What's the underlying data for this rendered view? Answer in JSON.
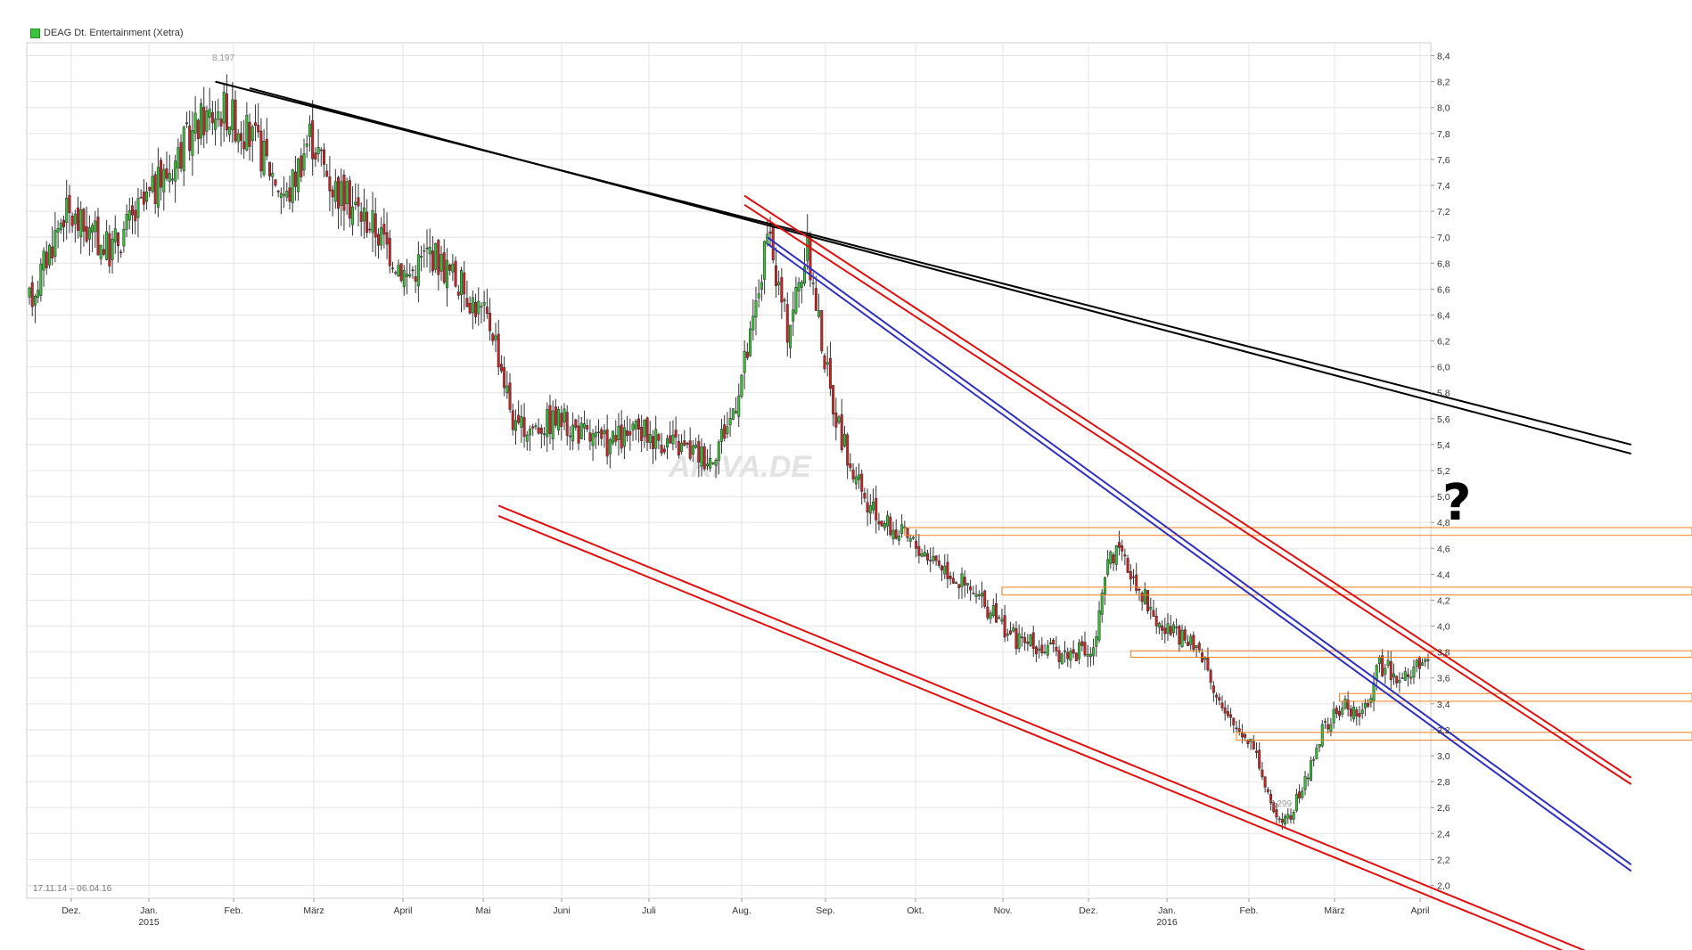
{
  "chart_data": {
    "type": "candlestick",
    "title": "DEAG Dt. Entertainment (Xetra)",
    "date_range": "17.11.14 – 06.04.16",
    "ylim": [
      1.9,
      8.5
    ],
    "y_ticks": [
      2.0,
      2.2,
      2.4,
      2.6,
      2.8,
      3.0,
      3.2,
      3.4,
      3.6,
      3.8,
      4.0,
      4.2,
      4.4,
      4.6,
      4.8,
      5.0,
      5.2,
      5.4,
      5.6,
      5.8,
      6.0,
      6.2,
      6.4,
      6.6,
      6.8,
      7.0,
      7.2,
      7.4,
      7.6,
      7.8,
      8.0,
      8.2,
      8.4
    ],
    "y_tick_labels": [
      "2,0",
      "2,2",
      "2,4",
      "2,6",
      "2,8",
      "3,0",
      "3,2",
      "3,4",
      "3,6",
      "3,8",
      "4,0",
      "4,2",
      "4,4",
      "4,6",
      "4,8",
      "5,0",
      "5,2",
      "5,4",
      "5,6",
      "5,8",
      "6,0",
      "6,2",
      "6,4",
      "6,6",
      "6,8",
      "7,0",
      "7,2",
      "7,4",
      "7,6",
      "7,8",
      "8,0",
      "8,2",
      "8,4"
    ],
    "x_months": [
      {
        "label": "Dez.",
        "sub": ""
      },
      {
        "label": "Jan.",
        "sub": "2015"
      },
      {
        "label": "Feb.",
        "sub": ""
      },
      {
        "label": "März",
        "sub": ""
      },
      {
        "label": "April",
        "sub": ""
      },
      {
        "label": "Mai",
        "sub": ""
      },
      {
        "label": "Juni",
        "sub": ""
      },
      {
        "label": "Juli",
        "sub": ""
      },
      {
        "label": "Aug.",
        "sub": ""
      },
      {
        "label": "Sep.",
        "sub": ""
      },
      {
        "label": "Okt.",
        "sub": ""
      },
      {
        "label": "Nov.",
        "sub": ""
      },
      {
        "label": "Dez.",
        "sub": ""
      },
      {
        "label": "Jan.",
        "sub": "2016"
      },
      {
        "label": "Feb.",
        "sub": ""
      },
      {
        "label": "März",
        "sub": ""
      },
      {
        "label": "April",
        "sub": ""
      }
    ],
    "anchors": [
      {
        "x": 0,
        "y": 6.5
      },
      {
        "x": 12,
        "y": 7.2
      },
      {
        "x": 28,
        "y": 6.9
      },
      {
        "x": 45,
        "y": 7.4
      },
      {
        "x": 60,
        "y": 7.9
      },
      {
        "x": 68,
        "y": 8.0
      },
      {
        "x": 80,
        "y": 7.7
      },
      {
        "x": 90,
        "y": 7.3
      },
      {
        "x": 98,
        "y": 7.8
      },
      {
        "x": 106,
        "y": 7.4
      },
      {
        "x": 120,
        "y": 7.1
      },
      {
        "x": 132,
        "y": 6.7
      },
      {
        "x": 140,
        "y": 6.9
      },
      {
        "x": 152,
        "y": 6.6
      },
      {
        "x": 162,
        "y": 6.3
      },
      {
        "x": 170,
        "y": 5.5
      },
      {
        "x": 185,
        "y": 5.6
      },
      {
        "x": 200,
        "y": 5.4
      },
      {
        "x": 215,
        "y": 5.5
      },
      {
        "x": 225,
        "y": 5.4
      },
      {
        "x": 238,
        "y": 5.3
      },
      {
        "x": 245,
        "y": 5.6
      },
      {
        "x": 252,
        "y": 6.2
      },
      {
        "x": 258,
        "y": 7.0
      },
      {
        "x": 265,
        "y": 6.3
      },
      {
        "x": 272,
        "y": 6.9
      },
      {
        "x": 280,
        "y": 5.8
      },
      {
        "x": 286,
        "y": 5.3
      },
      {
        "x": 293,
        "y": 4.9
      },
      {
        "x": 305,
        "y": 4.7
      },
      {
        "x": 318,
        "y": 4.5
      },
      {
        "x": 332,
        "y": 4.2
      },
      {
        "x": 345,
        "y": 3.9
      },
      {
        "x": 358,
        "y": 3.8
      },
      {
        "x": 372,
        "y": 3.8
      },
      {
        "x": 378,
        "y": 4.6
      },
      {
        "x": 386,
        "y": 4.4
      },
      {
        "x": 395,
        "y": 4.0
      },
      {
        "x": 410,
        "y": 3.8
      },
      {
        "x": 418,
        "y": 3.3
      },
      {
        "x": 428,
        "y": 3.1
      },
      {
        "x": 434,
        "y": 2.6
      },
      {
        "x": 440,
        "y": 2.5
      },
      {
        "x": 446,
        "y": 2.8
      },
      {
        "x": 452,
        "y": 3.2
      },
      {
        "x": 460,
        "y": 3.4
      },
      {
        "x": 466,
        "y": 3.3
      },
      {
        "x": 472,
        "y": 3.7
      },
      {
        "x": 480,
        "y": 3.6
      },
      {
        "x": 488,
        "y": 3.7
      }
    ],
    "annotations": {
      "high": "8,197",
      "low": "2,299",
      "question": "?",
      "watermark": "ARIVA.DE"
    },
    "trendlines": [
      {
        "color": "#000000",
        "x1": 65,
        "y1": 8.2,
        "x2": 560,
        "y2": 5.4
      },
      {
        "color": "#000000",
        "x1": 77,
        "y1": 8.15,
        "x2": 560,
        "y2": 5.33
      },
      {
        "color": "#e01010",
        "x1": 164,
        "y1": 4.93,
        "x2": 560,
        "y2": 1.35
      },
      {
        "color": "#e01010",
        "x1": 164,
        "y1": 4.85,
        "x2": 560,
        "y2": 1.28
      },
      {
        "color": "#e01010",
        "x1": 250,
        "y1": 7.32,
        "x2": 560,
        "y2": 2.83
      },
      {
        "color": "#e01010",
        "x1": 250,
        "y1": 7.25,
        "x2": 560,
        "y2": 2.78
      },
      {
        "color": "#3030c0",
        "x1": 258,
        "y1": 7.0,
        "x2": 560,
        "y2": 2.16
      },
      {
        "color": "#3030c0",
        "x1": 258,
        "y1": 6.95,
        "x2": 560,
        "y2": 2.11
      }
    ],
    "horizontal_zones": [
      {
        "x1": 306,
        "y_top": 4.76,
        "y_bot": 4.7
      },
      {
        "x1": 340,
        "y_top": 4.3,
        "y_bot": 4.24
      },
      {
        "x1": 385,
        "y_top": 3.81,
        "y_bot": 3.76
      },
      {
        "x1": 458,
        "y_top": 3.48,
        "y_bot": 3.42
      },
      {
        "x1": 422,
        "y_top": 3.18,
        "y_bot": 3.12
      }
    ],
    "colors": {
      "up": "#32c832",
      "down": "#d42020",
      "grid": "#e4e4e4",
      "zone": "#f08020"
    }
  }
}
